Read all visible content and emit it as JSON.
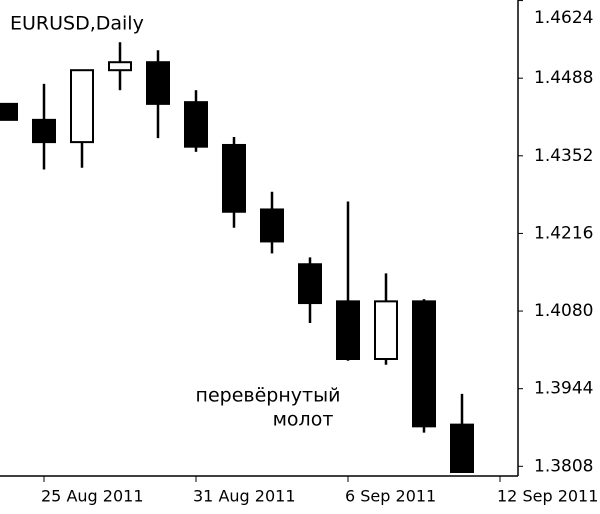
{
  "chart_data": {
    "type": "candlestick",
    "title": "EURUSD,Daily",
    "categories": [
      null,
      "25 Aug 2011",
      null,
      null,
      null,
      "31 Aug 2011",
      null,
      null,
      null,
      "6 Sep 2011",
      null,
      null,
      null,
      "12 Sep 2011"
    ],
    "open": [
      1.4443,
      1.4415,
      1.4376,
      1.4502,
      1.4516,
      1.4446,
      1.4371,
      1.4258,
      1.4162,
      1.4097,
      1.3996,
      1.4097,
      1.3881,
      null
    ],
    "high": [
      1.4443,
      1.4478,
      1.4502,
      1.4551,
      1.4537,
      1.4467,
      1.4385,
      1.4289,
      1.4174,
      1.4272,
      1.4146,
      1.4101,
      1.3935,
      null
    ],
    "low": [
      1.4415,
      1.4328,
      1.4331,
      1.4467,
      1.4383,
      1.4359,
      1.4226,
      1.4181,
      1.4059,
      1.3993,
      1.3986,
      1.3867,
      1.3798,
      null
    ],
    "close": [
      1.4415,
      1.4376,
      1.4502,
      1.4516,
      1.4443,
      1.4368,
      1.4254,
      1.4202,
      1.4094,
      1.3996,
      1.4097,
      1.3878,
      1.3798,
      null
    ],
    "up_color": "#ffffff",
    "down_color": "#000000",
    "ylim": [
      1.3791,
      1.4625
    ],
    "yticks": [
      1.4624,
      1.4488,
      1.4352,
      1.4216,
      {
        "value": 1.408,
        "label": "1.4080"
      },
      1.3944,
      1.3808
    ],
    "annotation": [
      "перевёрнутый",
      "молот"
    ]
  }
}
